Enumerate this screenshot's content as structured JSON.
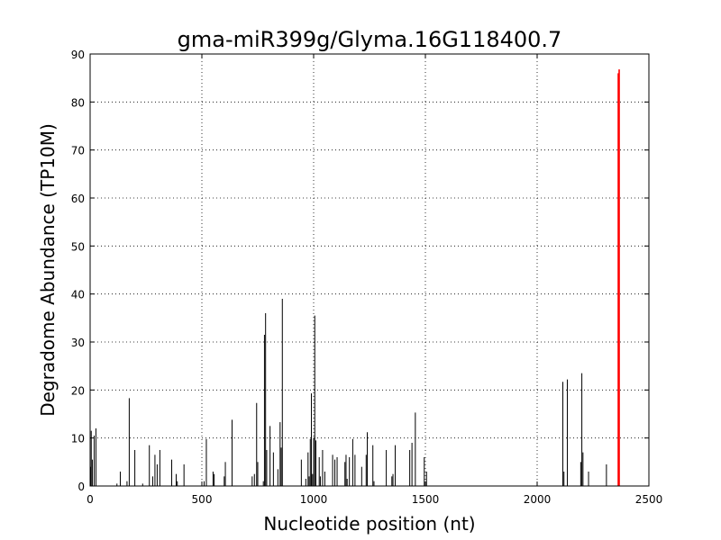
{
  "chart_data": {
    "type": "bar",
    "title": "gma-miR399g/Glyma.16G118400.7",
    "xlabel": "Nucleotide position (nt)",
    "ylabel": "Degradome Abundance (TP10M)",
    "xlim": [
      0,
      2500
    ],
    "ylim": [
      0,
      90
    ],
    "xticks": [
      0,
      500,
      1000,
      1500,
      2000,
      2500
    ],
    "yticks": [
      0,
      10,
      20,
      30,
      40,
      50,
      60,
      70,
      80,
      90
    ],
    "grid": true,
    "colors": {
      "background_bars": "#000000",
      "highlight": "#ff0000",
      "grid": "#000000"
    },
    "background_bars": [
      {
        "x": 2,
        "y": 4
      },
      {
        "x": 5,
        "y": 11.5
      },
      {
        "x": 10,
        "y": 5.5
      },
      {
        "x": 18,
        "y": 10.5
      },
      {
        "x": 26,
        "y": 12
      },
      {
        "x": 120,
        "y": 0.5
      },
      {
        "x": 135,
        "y": 3
      },
      {
        "x": 165,
        "y": 1
      },
      {
        "x": 175,
        "y": 18.3
      },
      {
        "x": 200,
        "y": 7.5
      },
      {
        "x": 235,
        "y": 0.5
      },
      {
        "x": 265,
        "y": 8.5
      },
      {
        "x": 280,
        "y": 2
      },
      {
        "x": 290,
        "y": 6.5
      },
      {
        "x": 300,
        "y": 4.5
      },
      {
        "x": 312,
        "y": 7.5
      },
      {
        "x": 365,
        "y": 5.5
      },
      {
        "x": 385,
        "y": 2.5
      },
      {
        "x": 390,
        "y": 1
      },
      {
        "x": 420,
        "y": 4.5
      },
      {
        "x": 510,
        "y": 1
      },
      {
        "x": 520,
        "y": 9.8
      },
      {
        "x": 550,
        "y": 3
      },
      {
        "x": 555,
        "y": 2.5
      },
      {
        "x": 600,
        "y": 2
      },
      {
        "x": 605,
        "y": 5
      },
      {
        "x": 635,
        "y": 13.8
      },
      {
        "x": 725,
        "y": 2
      },
      {
        "x": 735,
        "y": 2.5
      },
      {
        "x": 745,
        "y": 17.3
      },
      {
        "x": 750,
        "y": 5
      },
      {
        "x": 775,
        "y": 1
      },
      {
        "x": 780,
        "y": 31.5
      },
      {
        "x": 785,
        "y": 36
      },
      {
        "x": 790,
        "y": 7.5
      },
      {
        "x": 805,
        "y": 12.5
      },
      {
        "x": 820,
        "y": 7
      },
      {
        "x": 840,
        "y": 3.5
      },
      {
        "x": 850,
        "y": 13.3
      },
      {
        "x": 855,
        "y": 8
      },
      {
        "x": 860,
        "y": 39
      },
      {
        "x": 945,
        "y": 5.5
      },
      {
        "x": 965,
        "y": 1.5
      },
      {
        "x": 975,
        "y": 7
      },
      {
        "x": 980,
        "y": 2
      },
      {
        "x": 985,
        "y": 9.8
      },
      {
        "x": 990,
        "y": 19.3
      },
      {
        "x": 995,
        "y": 2.5
      },
      {
        "x": 1000,
        "y": 10
      },
      {
        "x": 1005,
        "y": 35.5
      },
      {
        "x": 1010,
        "y": 9.5
      },
      {
        "x": 1025,
        "y": 6
      },
      {
        "x": 1030,
        "y": 2
      },
      {
        "x": 1040,
        "y": 7.5
      },
      {
        "x": 1050,
        "y": 3
      },
      {
        "x": 1085,
        "y": 6.5
      },
      {
        "x": 1095,
        "y": 5.5
      },
      {
        "x": 1105,
        "y": 6
      },
      {
        "x": 1140,
        "y": 5
      },
      {
        "x": 1145,
        "y": 6.5
      },
      {
        "x": 1150,
        "y": 1.5
      },
      {
        "x": 1160,
        "y": 6
      },
      {
        "x": 1175,
        "y": 9.8
      },
      {
        "x": 1185,
        "y": 6.5
      },
      {
        "x": 1215,
        "y": 4
      },
      {
        "x": 1235,
        "y": 6.5
      },
      {
        "x": 1240,
        "y": 11.2
      },
      {
        "x": 1265,
        "y": 8.5
      },
      {
        "x": 1270,
        "y": 1
      },
      {
        "x": 1325,
        "y": 7.5
      },
      {
        "x": 1350,
        "y": 2
      },
      {
        "x": 1355,
        "y": 2.5
      },
      {
        "x": 1365,
        "y": 8.5
      },
      {
        "x": 1430,
        "y": 7.5
      },
      {
        "x": 1440,
        "y": 9
      },
      {
        "x": 1455,
        "y": 15.3
      },
      {
        "x": 1495,
        "y": 6
      },
      {
        "x": 1505,
        "y": 3
      },
      {
        "x": 2115,
        "y": 21.7
      },
      {
        "x": 2120,
        "y": 3
      },
      {
        "x": 2135,
        "y": 22.2
      },
      {
        "x": 2195,
        "y": 5
      },
      {
        "x": 2200,
        "y": 23.5
      },
      {
        "x": 2205,
        "y": 7
      },
      {
        "x": 2230,
        "y": 3
      },
      {
        "x": 2310,
        "y": 4.5
      }
    ],
    "highlight_bars": [
      {
        "x": 2363,
        "y": 86
      },
      {
        "x": 2367,
        "y": 86.8
      }
    ]
  }
}
